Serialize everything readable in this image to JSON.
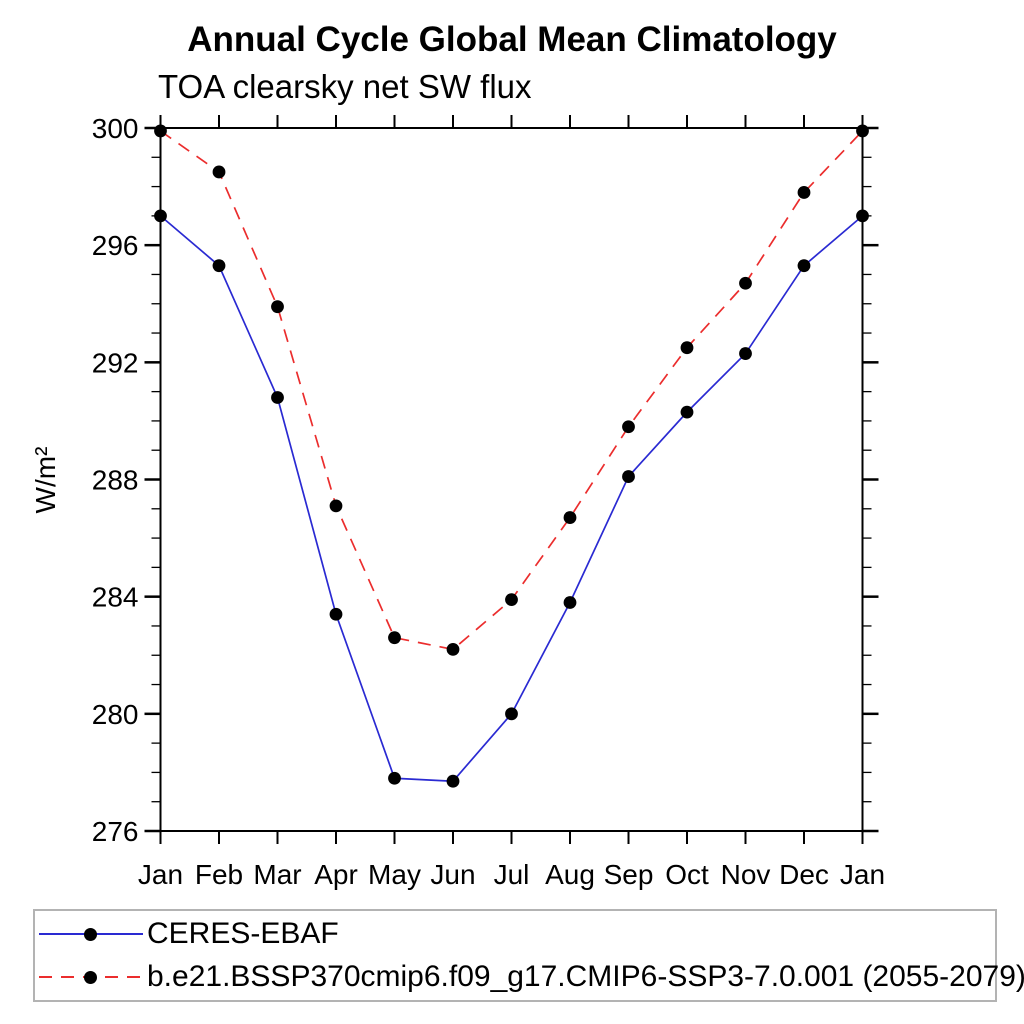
{
  "title": "Annual Cycle Global Mean Climatology",
  "subtitle": "TOA clearsky net SW flux",
  "chart_data": {
    "type": "line",
    "categories": [
      "Jan",
      "Feb",
      "Mar",
      "Apr",
      "May",
      "Jun",
      "Jul",
      "Aug",
      "Sep",
      "Oct",
      "Nov",
      "Dec",
      "Jan"
    ],
    "series": [
      {
        "name": "CERES-EBAF",
        "color": "#2a2ad2",
        "line_style": "solid",
        "marker": "filled-circle",
        "marker_color": "#000000",
        "values": [
          297.0,
          295.3,
          290.8,
          283.4,
          277.8,
          277.7,
          280.0,
          283.8,
          288.1,
          290.3,
          292.3,
          295.3,
          297.0
        ]
      },
      {
        "name": "b.e21.BSSP370cmip6.f09_g17.CMIP6-SSP3-7.0.001 (2055-2079)",
        "color": "#eb2d2d",
        "line_style": "dashed",
        "marker": "filled-circle",
        "marker_color": "#000000",
        "values": [
          299.9,
          298.5,
          293.9,
          287.1,
          282.6,
          282.2,
          283.9,
          286.7,
          289.8,
          292.5,
          294.7,
          297.8,
          299.9
        ]
      }
    ],
    "xlabel": "",
    "ylabel": "W/m²",
    "ylim": [
      276,
      300
    ],
    "ytick_major": [
      276,
      280,
      284,
      288,
      292,
      296,
      300
    ],
    "ytick_minor_step": 1,
    "grid": false,
    "legend_position": "bottom"
  },
  "legend": {
    "entries": [
      {
        "label": "CERES-EBAF"
      },
      {
        "label": "b.e21.BSSP370cmip6.f09_g17.CMIP6-SSP3-7.0.001 (2055-2079)"
      }
    ]
  },
  "colors": {
    "axis": "#000000",
    "tick_label": "#000000",
    "legend_border": "#b3b3b3",
    "marker": "#000000",
    "series_1": "#2a2ad2",
    "series_2": "#eb2d2d"
  }
}
